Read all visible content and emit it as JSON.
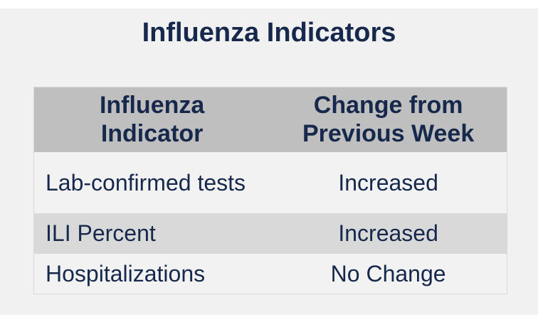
{
  "chart_data": {
    "type": "table",
    "title": "Influenza Indicators",
    "columns": [
      "Influenza Indicator",
      "Change from Previous Week"
    ],
    "rows": [
      [
        "Lab-confirmed tests",
        "Increased"
      ],
      [
        "ILI Percent",
        "Increased"
      ],
      [
        "Hospitalizations",
        "No Change"
      ]
    ]
  },
  "colors": {
    "text_navy": "#16284b",
    "header_bg": "#bfbfbf",
    "row_alt_bg": "#d9d9d9",
    "row_light_bg": "#f2f2f2",
    "panel_bg": "#f1f1f2",
    "page_bg": "#ffffff",
    "table_border": "#d9d9d9"
  }
}
